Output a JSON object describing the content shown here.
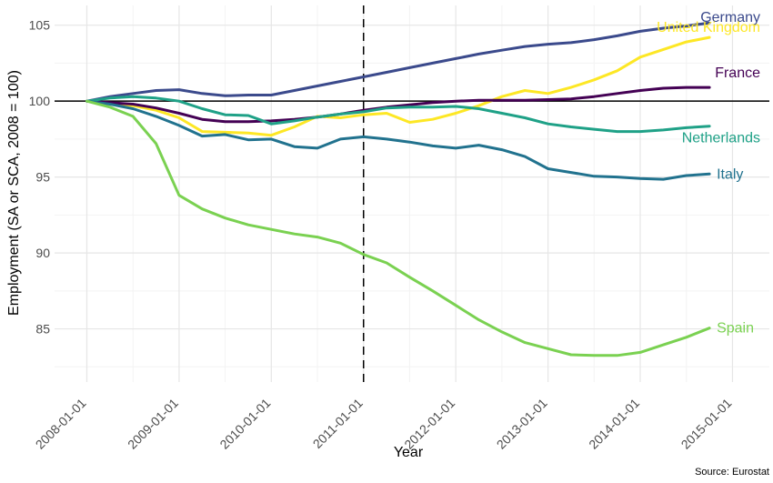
{
  "chart_data": {
    "type": "line",
    "xlabel": "Year",
    "ylabel": "Employment (SA or SCA, 2008 = 100)",
    "source": "Source: Eurostat",
    "x_ticks": [
      "2008-01-01",
      "2009-01-01",
      "2010-01-01",
      "2011-01-01",
      "2012-01-01",
      "2013-01-01",
      "2014-01-01",
      "2015-01-01"
    ],
    "y_ticks": [
      85,
      90,
      95,
      100,
      105
    ],
    "xlim": [
      2007.65,
      2015.4
    ],
    "ylim": [
      81.5,
      106.3
    ],
    "reference_hline": 100,
    "reference_vline": 2011,
    "grid": true,
    "series": [
      {
        "name": "Germany",
        "color": "#3b4a8c",
        "x": [
          2008.0,
          2008.25,
          2008.5,
          2008.75,
          2009.0,
          2009.25,
          2009.5,
          2009.75,
          2010.0,
          2010.25,
          2010.5,
          2010.75,
          2011.0,
          2011.25,
          2011.5,
          2011.75,
          2012.0,
          2012.25,
          2012.5,
          2012.75,
          2013.0,
          2013.25,
          2013.5,
          2013.75,
          2014.0,
          2014.25,
          2014.5,
          2014.75
        ],
        "values": [
          100.0,
          100.3,
          100.5,
          100.7,
          100.75,
          100.5,
          100.35,
          100.4,
          100.4,
          100.7,
          101.0,
          101.3,
          101.6,
          101.9,
          102.2,
          102.5,
          102.8,
          103.1,
          103.35,
          103.6,
          103.75,
          103.85,
          104.05,
          104.3,
          104.6,
          104.8,
          104.95,
          105.15
        ]
      },
      {
        "name": "United Kingdom",
        "color": "#fde725",
        "x": [
          2008.0,
          2008.25,
          2008.5,
          2008.75,
          2009.0,
          2009.25,
          2009.5,
          2009.75,
          2010.0,
          2010.25,
          2010.5,
          2010.75,
          2011.0,
          2011.25,
          2011.5,
          2011.75,
          2012.0,
          2012.25,
          2012.5,
          2012.75,
          2013.0,
          2013.25,
          2013.5,
          2013.75,
          2014.0,
          2014.25,
          2014.5,
          2014.75
        ],
        "values": [
          100.0,
          99.85,
          99.7,
          99.4,
          98.9,
          98.0,
          97.95,
          97.9,
          97.75,
          98.3,
          99.0,
          98.9,
          99.1,
          99.2,
          98.6,
          98.8,
          99.2,
          99.7,
          100.3,
          100.7,
          100.5,
          100.9,
          101.4,
          102.0,
          102.9,
          103.4,
          103.9,
          104.2
        ]
      },
      {
        "name": "France",
        "color": "#440154",
        "x": [
          2008.0,
          2008.25,
          2008.5,
          2008.75,
          2009.0,
          2009.25,
          2009.5,
          2009.75,
          2010.0,
          2010.25,
          2010.5,
          2010.75,
          2011.0,
          2011.25,
          2011.5,
          2011.75,
          2012.0,
          2012.25,
          2012.5,
          2012.75,
          2013.0,
          2013.25,
          2013.5,
          2013.75,
          2014.0,
          2014.25,
          2014.5,
          2014.75
        ],
        "values": [
          100.0,
          99.9,
          99.8,
          99.55,
          99.2,
          98.8,
          98.65,
          98.65,
          98.7,
          98.8,
          98.95,
          99.15,
          99.4,
          99.6,
          99.75,
          99.9,
          100.0,
          100.05,
          100.05,
          100.05,
          100.1,
          100.15,
          100.3,
          100.5,
          100.7,
          100.85,
          100.9,
          100.9
        ]
      },
      {
        "name": "Netherlands",
        "color": "#1fa187",
        "x": [
          2008.0,
          2008.25,
          2008.5,
          2008.75,
          2009.0,
          2009.25,
          2009.5,
          2009.75,
          2010.0,
          2010.25,
          2010.5,
          2010.75,
          2011.0,
          2011.25,
          2011.5,
          2011.75,
          2012.0,
          2012.25,
          2012.5,
          2012.75,
          2013.0,
          2013.25,
          2013.5,
          2013.75,
          2014.0,
          2014.25,
          2014.5,
          2014.75
        ],
        "values": [
          100.0,
          100.2,
          100.3,
          100.2,
          100.0,
          99.5,
          99.1,
          99.05,
          98.5,
          98.7,
          98.95,
          99.15,
          99.3,
          99.55,
          99.6,
          99.6,
          99.65,
          99.5,
          99.2,
          98.9,
          98.5,
          98.3,
          98.15,
          98.0,
          98.0,
          98.1,
          98.25,
          98.35
        ]
      },
      {
        "name": "Italy",
        "color": "#21728e",
        "x": [
          2008.0,
          2008.25,
          2008.5,
          2008.75,
          2009.0,
          2009.25,
          2009.5,
          2009.75,
          2010.0,
          2010.25,
          2010.5,
          2010.75,
          2011.0,
          2011.25,
          2011.5,
          2011.75,
          2012.0,
          2012.25,
          2012.5,
          2012.75,
          2013.0,
          2013.25,
          2013.5,
          2013.75,
          2014.0,
          2014.25,
          2014.5,
          2014.75
        ],
        "values": [
          100.0,
          99.8,
          99.5,
          99.0,
          98.4,
          97.7,
          97.8,
          97.45,
          97.5,
          97.0,
          96.9,
          97.5,
          97.65,
          97.5,
          97.3,
          97.05,
          96.9,
          97.1,
          96.8,
          96.35,
          95.55,
          95.3,
          95.05,
          95.0,
          94.9,
          94.85,
          95.1,
          95.2
        ]
      },
      {
        "name": "Spain",
        "color": "#7ad151",
        "x": [
          2008.0,
          2008.25,
          2008.5,
          2008.75,
          2009.0,
          2009.25,
          2009.5,
          2009.75,
          2010.0,
          2010.25,
          2010.5,
          2010.75,
          2011.0,
          2011.25,
          2011.5,
          2011.75,
          2012.0,
          2012.25,
          2012.5,
          2012.75,
          2013.0,
          2013.25,
          2013.5,
          2013.75,
          2014.0,
          2014.25,
          2014.5,
          2014.75
        ],
        "values": [
          100.0,
          99.6,
          99.0,
          97.2,
          93.8,
          92.9,
          92.3,
          91.85,
          91.55,
          91.25,
          91.05,
          90.65,
          89.9,
          89.35,
          88.4,
          87.5,
          86.55,
          85.6,
          84.8,
          84.1,
          83.7,
          83.3,
          83.25,
          83.25,
          83.45,
          83.95,
          84.45,
          85.05
        ]
      }
    ]
  }
}
